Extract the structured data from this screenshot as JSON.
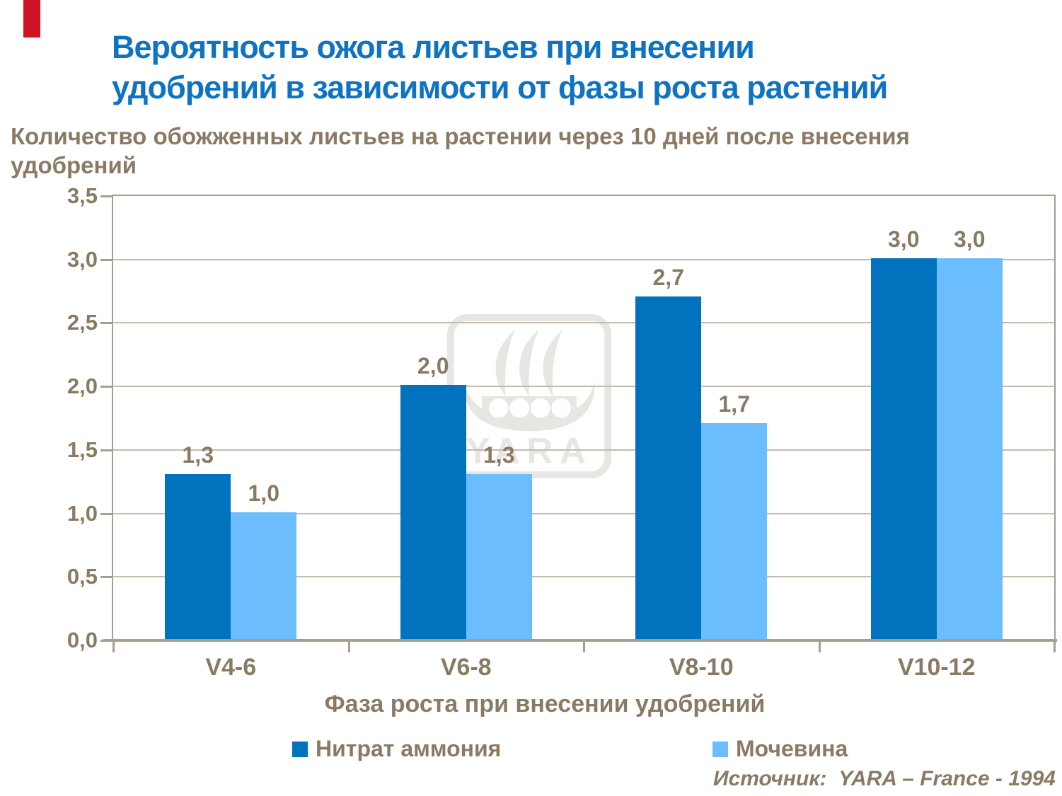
{
  "slide": {
    "accent_color": "#CF1224",
    "title": {
      "line1": "Вероятность ожога листьев при внесении",
      "line2": "удобрений в зависимости от фазы роста растений",
      "color": "#0E73C3"
    },
    "subtitle": {
      "line1": "Количество обожженных листьев на растении через 10 дней после внесения",
      "line2": "удобрений"
    },
    "source": "Источник:  YARA – France - 1994",
    "text_color": "#8A7A63"
  },
  "chart_data": {
    "type": "bar",
    "title": "Вероятность ожога листьев при внесении удобрений в зависимости от фазы роста растений",
    "categories": [
      "V4-6",
      "V6-8",
      "V8-10",
      "V10-12"
    ],
    "series": [
      {
        "name": "Нитрат аммония",
        "color": "#0072BE",
        "values": [
          1.3,
          2.0,
          2.7,
          3.0
        ],
        "display_values": [
          "1,3",
          "2,0",
          "2,7",
          "3,0"
        ]
      },
      {
        "name": "Мочевина",
        "color": "#6CBDFD",
        "values": [
          1.0,
          1.3,
          1.7,
          3.0
        ],
        "display_values": [
          "1,0",
          "1,3",
          "1,7",
          "3,0"
        ]
      }
    ],
    "xlabel": "Фаза роста при внесении удобрений",
    "ylabel": "Количество обожженных листьев на растении через 10 дней после внесения удобрений",
    "ylim": [
      0,
      3.5
    ],
    "ytick_step": 0.5,
    "yticks": [
      "3,5",
      "3,0",
      "2,5",
      "2,0",
      "1,5",
      "1,0",
      "0,5",
      "0,0"
    ],
    "grid": true,
    "legend_position": "bottom",
    "gridline_color": "#C5BBAD",
    "axis_color": "#A89D8E"
  },
  "watermark": {
    "label": "YARA"
  }
}
